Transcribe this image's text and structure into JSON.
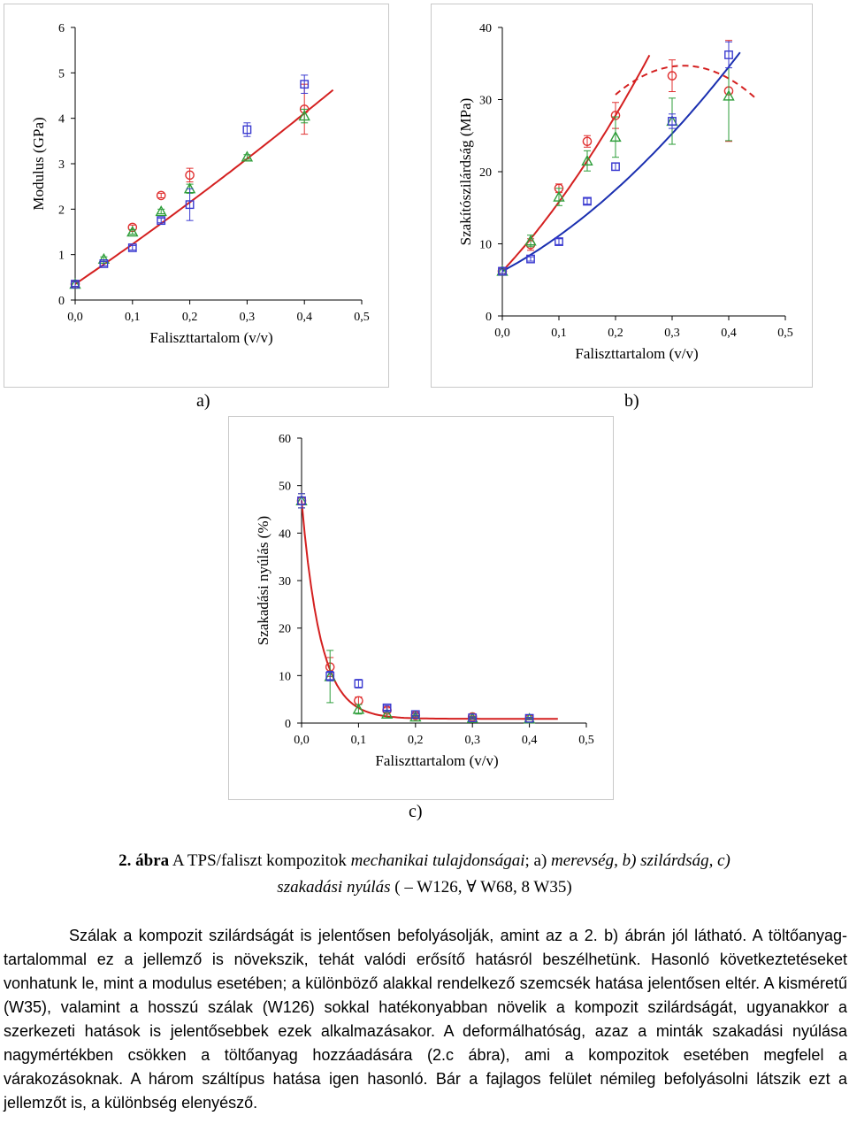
{
  "panels": [
    {
      "id": "a",
      "label": "a)",
      "chart_data": {
        "type": "scatter",
        "xlabel": "Faliszttartalom (v/v)",
        "ylabel": "Modulus (GPa)",
        "xlim": [
          0,
          0.5
        ],
        "ylim": [
          0,
          6
        ],
        "xticks": [
          "0,0",
          "0,1",
          "0,2",
          "0,3",
          "0,4",
          "0,5"
        ],
        "yticks": [
          "0",
          "1",
          "2",
          "3",
          "4",
          "5",
          "6"
        ],
        "series": [
          {
            "marker": "circle",
            "color": "#e03030",
            "x": [
              0.0,
              0.1,
              0.15,
              0.2,
              0.4
            ],
            "y": [
              0.35,
              1.6,
              2.3,
              2.75,
              4.2
            ],
            "err": [
              0.05,
              0.05,
              0.05,
              0.15,
              0.55
            ]
          },
          {
            "marker": "triangle",
            "color": "#2e9e3a",
            "x": [
              0.0,
              0.05,
              0.1,
              0.15,
              0.2,
              0.3,
              0.4
            ],
            "y": [
              0.35,
              0.9,
              1.5,
              1.95,
              2.45,
              3.15,
              4.05
            ],
            "err": [
              0.05,
              0.05,
              0.05,
              0.05,
              0.1,
              0.05,
              0.15
            ]
          },
          {
            "marker": "square",
            "color": "#3a3ad0",
            "x": [
              0.0,
              0.05,
              0.1,
              0.15,
              0.2,
              0.3,
              0.4
            ],
            "y": [
              0.35,
              0.8,
              1.15,
              1.75,
              2.1,
              3.75,
              4.75
            ],
            "err": [
              0.05,
              0.05,
              0.05,
              0.05,
              0.35,
              0.15,
              0.2
            ]
          }
        ],
        "fits": [
          {
            "color": "#d42020",
            "style": "solid",
            "model": "poly",
            "coef": [
              0.35,
              8.6,
              2.0
            ],
            "xrange": [
              0,
              0.45
            ]
          }
        ]
      }
    },
    {
      "id": "b",
      "label": "b)",
      "chart_data": {
        "type": "scatter",
        "xlabel": "Faliszttartalom (v/v)",
        "ylabel": "Szakítószilárdság (MPa)",
        "xlim": [
          0,
          0.5
        ],
        "ylim": [
          0,
          40
        ],
        "xticks": [
          "0,0",
          "0,1",
          "0,2",
          "0,3",
          "0,4",
          "0,5"
        ],
        "yticks": [
          "0",
          "10",
          "20",
          "30",
          "40"
        ],
        "series": [
          {
            "marker": "circle",
            "color": "#e03030",
            "x": [
              0.0,
              0.05,
              0.1,
              0.15,
              0.2,
              0.3,
              0.4
            ],
            "y": [
              6.2,
              9.9,
              17.7,
              24.2,
              27.8,
              33.3,
              31.2
            ],
            "err": [
              0.3,
              0.8,
              0.6,
              0.8,
              1.8,
              2.2,
              7.0
            ]
          },
          {
            "marker": "triangle",
            "color": "#2e9e3a",
            "x": [
              0.0,
              0.05,
              0.1,
              0.15,
              0.2,
              0.3,
              0.4
            ],
            "y": [
              6.2,
              10.4,
              16.5,
              21.5,
              24.8,
              27.0,
              30.5
            ],
            "err": [
              0.3,
              0.8,
              1.2,
              1.4,
              2.8,
              3.2,
              6.2
            ]
          },
          {
            "marker": "square",
            "color": "#3a3ad0",
            "x": [
              0.0,
              0.05,
              0.1,
              0.15,
              0.2,
              0.3,
              0.4
            ],
            "y": [
              6.2,
              7.9,
              10.3,
              15.9,
              20.7,
              27.0,
              36.2
            ],
            "err": [
              0.3,
              0.3,
              0.4,
              0.4,
              0.5,
              1.0,
              1.8
            ]
          }
        ],
        "fits": [
          {
            "color": "#d42020",
            "style": "solid",
            "model": "poly",
            "coef": [
              6.2,
              84,
              120
            ],
            "xrange": [
              0,
              0.26
            ]
          },
          {
            "color": "#d42020",
            "style": "dashed",
            "model": "poly",
            "coef": [
              6.2,
              178,
              -278
            ],
            "xrange": [
              0.2,
              0.45
            ]
          },
          {
            "color": "#1a2fb0",
            "style": "solid",
            "model": "poly",
            "coef": [
              6.2,
              42,
              72
            ],
            "xrange": [
              0,
              0.42
            ]
          }
        ]
      }
    },
    {
      "id": "c",
      "label": "c)",
      "chart_data": {
        "type": "scatter",
        "xlabel": "Faliszttartalom (v/v)",
        "ylabel": "Szakadási nyúlás (%)",
        "xlim": [
          0,
          0.5
        ],
        "ylim": [
          0,
          60
        ],
        "xticks": [
          "0,0",
          "0,1",
          "0,2",
          "0,3",
          "0,4",
          "0,5"
        ],
        "yticks": [
          "0",
          "10",
          "20",
          "30",
          "40",
          "50",
          "60"
        ],
        "series": [
          {
            "marker": "circle",
            "color": "#e03030",
            "x": [
              0.0,
              0.05,
              0.1,
              0.15,
              0.2,
              0.3,
              0.4
            ],
            "y": [
              46.8,
              11.8,
              4.7,
              2.7,
              1.6,
              1.3,
              0.9
            ],
            "err": [
              1.5,
              2.0,
              0.8,
              0.5,
              0.3,
              0.2,
              0.2
            ]
          },
          {
            "marker": "triangle",
            "color": "#2e9e3a",
            "x": [
              0.0,
              0.05,
              0.1,
              0.15,
              0.2,
              0.3,
              0.4
            ],
            "y": [
              46.8,
              9.8,
              2.9,
              1.9,
              1.3,
              1.0,
              0.9
            ],
            "err": [
              1.5,
              5.5,
              1.0,
              0.8,
              0.3,
              0.2,
              0.2
            ]
          },
          {
            "marker": "square",
            "color": "#3a3ad0",
            "x": [
              0.0,
              0.05,
              0.1,
              0.15,
              0.2,
              0.3,
              0.4
            ],
            "y": [
              46.8,
              9.9,
              8.3,
              3.2,
              1.8,
              1.1,
              1.0
            ],
            "err": [
              1.5,
              1.0,
              0.9,
              0.5,
              0.3,
              0.2,
              0.2
            ]
          }
        ],
        "fits": [
          {
            "color": "#d42020",
            "style": "solid",
            "model": "exp",
            "coef": [
              0.9,
              46.0,
              30.0
            ],
            "xrange": [
              0,
              0.45
            ]
          }
        ]
      }
    }
  ],
  "caption": {
    "prefix": "2. ábra",
    "part1": " A TPS/faliszt kompozitok ",
    "part2": "mechanikai tulajdonságai",
    "part3": "; a) ",
    "part4": "merevség, b) szilárdság, c)",
    "line2": "szakadási nyúlás",
    "legend": " ( – W126,  ∀ W68,  8 W35)"
  },
  "body": {
    "text": "Szálak a kompozit szilárdságát is jelentősen befolyásolják, amint az a 2. b) ábrán jól látható. A töltőanyag-tartalommal ez a jellemző is növekszik, tehát valódi erősítő hatásról beszélhetünk. Hasonló következtetéseket vonhatunk le, mint a modulus esetében; a különböző alakkal rendelkező szemcsék hatása jelentősen eltér. A kisméretű (W35), valamint a hosszú szálak (W126) sokkal hatékonyabban növelik a kompozit szilárdságát, ugyanakkor a szerkezeti hatások is jelentősebbek ezek alkalmazásakor. A deformálhatóság, azaz a minták szakadási nyúlása nagymértékben csökken a töltőanyag hozzáadására (2.c ábra), ami a kompozitok esetében megfelel a várakozásoknak. A három száltípus hatása igen hasonló. Bár a fajlagos felület némileg befolyásolni látszik ezt a jellemzőt is, a különbség elenyésző."
  }
}
